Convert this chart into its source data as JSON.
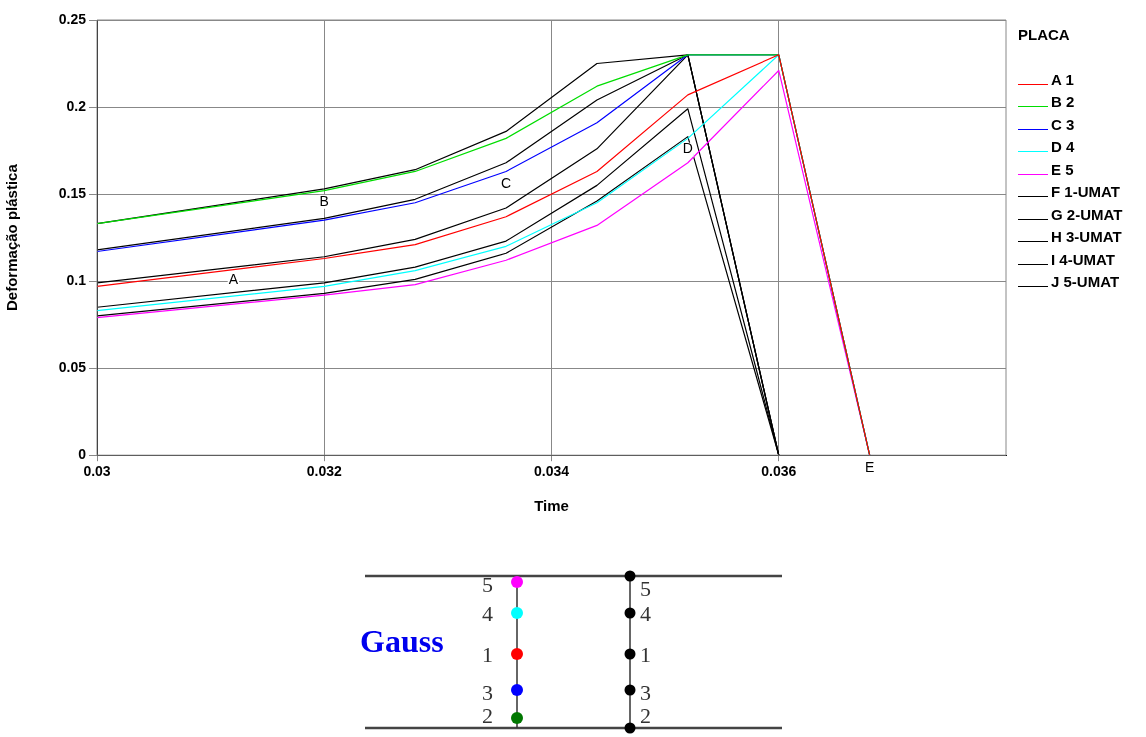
{
  "chart_data": {
    "type": "line",
    "xlabel": "Time",
    "ylabel": "Deformação plástica",
    "legend_title": "PLACA",
    "legend": "right",
    "grid": true,
    "marker": "none",
    "line_style": "solid",
    "xlim": [
      0.03,
      0.038
    ],
    "xticks": [
      0.03,
      0.032,
      0.034,
      0.036
    ],
    "ylim": [
      0,
      0.25
    ],
    "yticks": [
      0,
      0.05,
      0.1,
      0.15,
      0.2,
      0.25
    ],
    "x": [
      0.03,
      0.032,
      0.0328,
      0.0336,
      0.0344,
      0.0352,
      0.036,
      0.0368
    ],
    "series": [
      {
        "name": "A 1",
        "color": "#ff0000",
        "values": [
          0.097,
          0.113,
          0.121,
          0.137,
          0.163,
          0.207,
          0.23,
          0
        ]
      },
      {
        "name": "B 2",
        "color": "#00dd00",
        "values": [
          0.133,
          0.152,
          0.163,
          0.182,
          0.212,
          0.23,
          0.23,
          0
        ]
      },
      {
        "name": "C 3",
        "color": "#0000ff",
        "values": [
          0.117,
          0.135,
          0.145,
          0.163,
          0.191,
          0.23,
          0.23,
          0
        ]
      },
      {
        "name": "D 4",
        "color": "#00ffff",
        "values": [
          0.083,
          0.097,
          0.106,
          0.12,
          0.145,
          0.182,
          0.23,
          0
        ]
      },
      {
        "name": "E 5",
        "color": "#ff00ff",
        "values": [
          0.079,
          0.092,
          0.098,
          0.112,
          0.132,
          0.168,
          0.221,
          0
        ]
      },
      {
        "name": "F 1-UMAT",
        "color": "#000000",
        "values": [
          0.099,
          0.114,
          0.124,
          0.142,
          0.176,
          0.23,
          0,
          null
        ]
      },
      {
        "name": "G 2-UMAT",
        "color": "#000000",
        "values": [
          0.133,
          0.153,
          0.164,
          0.186,
          0.225,
          0.23,
          0,
          null
        ]
      },
      {
        "name": "H 3-UMAT",
        "color": "#000000",
        "values": [
          0.118,
          0.136,
          0.147,
          0.168,
          0.204,
          0.23,
          0,
          null
        ]
      },
      {
        "name": "I 4-UMAT",
        "color": "#000000",
        "values": [
          0.085,
          0.099,
          0.108,
          0.123,
          0.155,
          0.199,
          0,
          null
        ]
      },
      {
        "name": "J 5-UMAT",
        "color": "#000000",
        "values": [
          0.08,
          0.093,
          0.101,
          0.116,
          0.146,
          0.183,
          0,
          null
        ]
      }
    ],
    "annotations": [
      {
        "text": "A",
        "x": 0.0312,
        "y": 0.108
      },
      {
        "text": "B",
        "x": 0.032,
        "y": 0.153
      },
      {
        "text": "C",
        "x": 0.0336,
        "y": 0.163
      },
      {
        "text": "D",
        "x": 0.0352,
        "y": 0.183
      },
      {
        "text": "E",
        "x": 0.0368,
        "y": 0
      },
      "Gauss",
      "5",
      "4",
      "1",
      "3",
      "2"
    ]
  }
}
